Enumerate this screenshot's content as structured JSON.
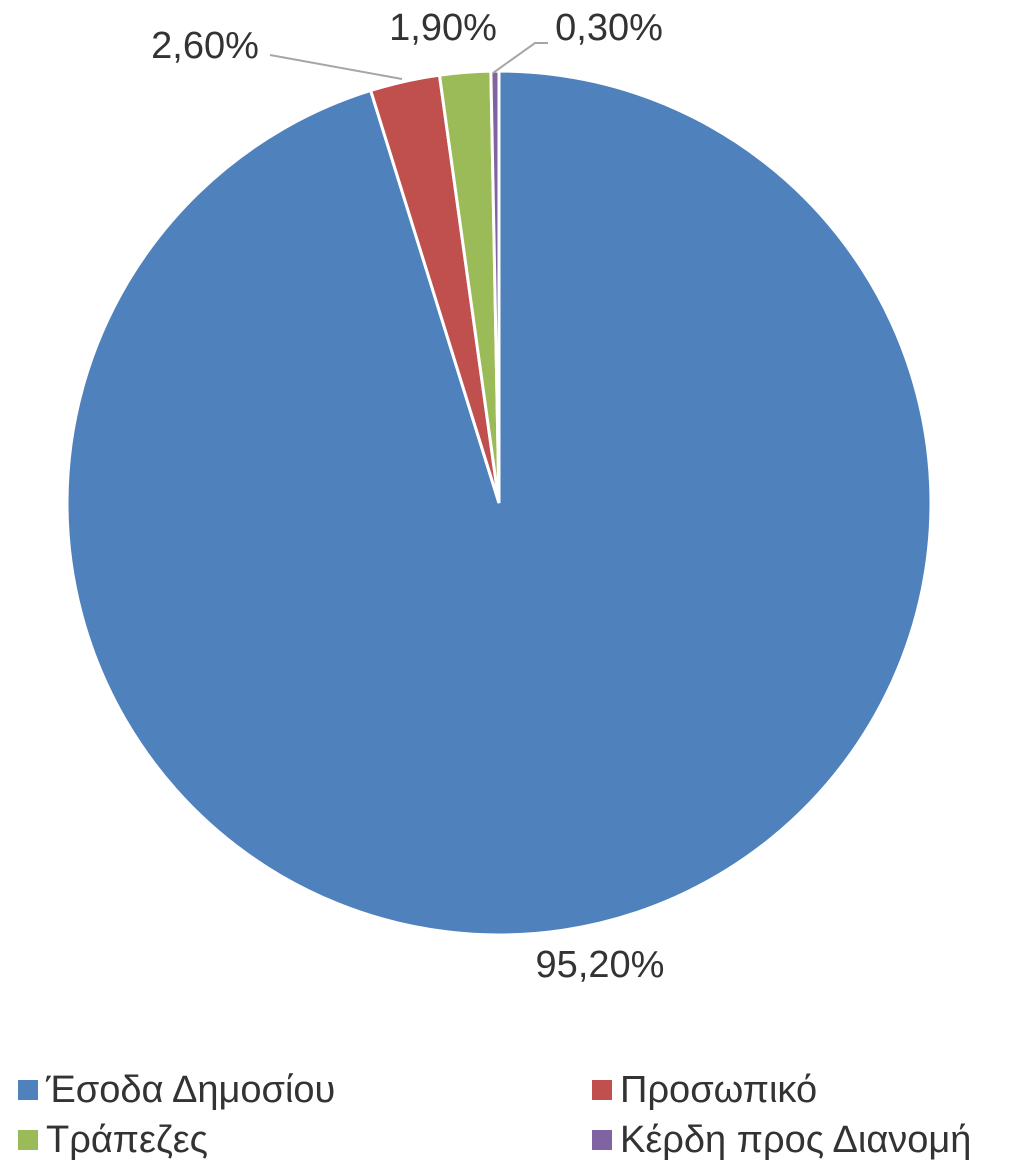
{
  "chart_data": {
    "type": "pie",
    "categories": [
      "Έσοδα Δημοσίου",
      "Προσωπικό",
      "Τράπεζες",
      "Κέρδη προς Διανομή"
    ],
    "values": [
      95.2,
      2.6,
      1.9,
      0.3
    ],
    "data_labels": [
      "95,20%",
      "2,60%",
      "1,90%",
      "0,30%"
    ],
    "colors": [
      "#4F81BD",
      "#C0504D",
      "#9BBB59",
      "#8064A2"
    ],
    "start_angle_deg": 0,
    "direction": "clockwise",
    "legend_position": "bottom"
  }
}
